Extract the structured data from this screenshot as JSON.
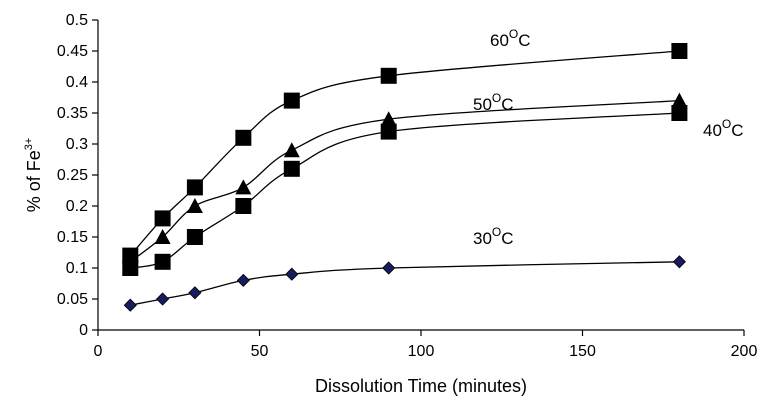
{
  "chart_data": {
    "type": "line",
    "title": "",
    "xlabel": "Dissolution Time (minutes)",
    "ylabel_main": "% of Fe",
    "ylabel_sup": "3+",
    "xlim": [
      0,
      200
    ],
    "ylim": [
      0,
      0.5
    ],
    "xticks": [
      0,
      50,
      100,
      150,
      200
    ],
    "yticks": [
      0,
      0.05,
      0.1,
      0.15,
      0.2,
      0.25,
      0.3,
      0.35,
      0.4,
      0.45,
      0.5
    ],
    "grid": false,
    "x": [
      10,
      20,
      30,
      45,
      60,
      90,
      180
    ],
    "series": [
      {
        "name": "60OC",
        "label_main": "60",
        "label_sup": "O",
        "label_suffix": "C",
        "marker": "square",
        "color": "#000000",
        "values": [
          0.12,
          0.18,
          0.23,
          0.31,
          0.37,
          0.41,
          0.45
        ]
      },
      {
        "name": "50OC",
        "label_main": "50",
        "label_sup": "O",
        "label_suffix": "C",
        "marker": "triangle",
        "color": "#000000",
        "values": [
          0.11,
          0.15,
          0.2,
          0.23,
          0.29,
          0.34,
          0.37
        ]
      },
      {
        "name": "40OC",
        "label_main": "40",
        "label_sup": "O",
        "label_suffix": "C",
        "marker": "square",
        "color": "#000000",
        "values": [
          0.1,
          0.11,
          0.15,
          0.2,
          0.26,
          0.32,
          0.35
        ]
      },
      {
        "name": "30OC",
        "label_main": "30",
        "label_sup": "O",
        "label_suffix": "C",
        "marker": "diamond",
        "color": "#1a1a5e",
        "values": [
          0.04,
          0.05,
          0.06,
          0.08,
          0.09,
          0.1,
          0.11
        ]
      }
    ]
  }
}
